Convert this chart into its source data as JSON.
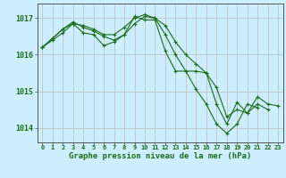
{
  "title": "Graphe pression niveau de la mer (hPa)",
  "background_color": "#cceeff",
  "grid_color": "#bbbbbb",
  "line_color": "#1a6b1a",
  "marker_color": "#1a6b1a",
  "x": [
    0,
    1,
    2,
    3,
    4,
    5,
    6,
    7,
    8,
    9,
    10,
    11,
    12,
    13,
    14,
    15,
    16,
    17,
    18,
    19,
    20,
    21,
    22,
    23
  ],
  "series1": [
    1016.2,
    1016.4,
    1016.6,
    1016.85,
    1016.6,
    1016.55,
    1016.25,
    1016.35,
    1016.55,
    1017.05,
    1016.95,
    1016.95,
    1016.1,
    1015.55,
    1015.55,
    1015.05,
    1014.65,
    1014.1,
    1013.85,
    1014.1,
    1014.65,
    1014.55,
    null,
    null
  ],
  "series2": [
    1016.2,
    1016.45,
    1016.7,
    1016.9,
    1016.75,
    1016.65,
    1016.5,
    1016.4,
    1016.55,
    1016.85,
    1017.05,
    1017.0,
    1016.55,
    1016.0,
    1015.55,
    1015.55,
    1015.5,
    1014.65,
    1014.1,
    1014.7,
    1014.4,
    1014.65,
    1014.5,
    null
  ],
  "series3": [
    1016.2,
    1016.45,
    1016.7,
    1016.85,
    1016.8,
    1016.7,
    1016.55,
    1016.55,
    1016.75,
    1017.0,
    1017.1,
    1017.0,
    1016.8,
    1016.35,
    1016.0,
    1015.75,
    1015.5,
    1015.1,
    1014.3,
    1014.5,
    1014.4,
    1014.85,
    1014.65,
    1014.6
  ],
  "ylim": [
    1013.6,
    1017.4
  ],
  "yticks": [
    1014,
    1015,
    1016,
    1017
  ],
  "xlim": [
    -0.5,
    23.5
  ]
}
